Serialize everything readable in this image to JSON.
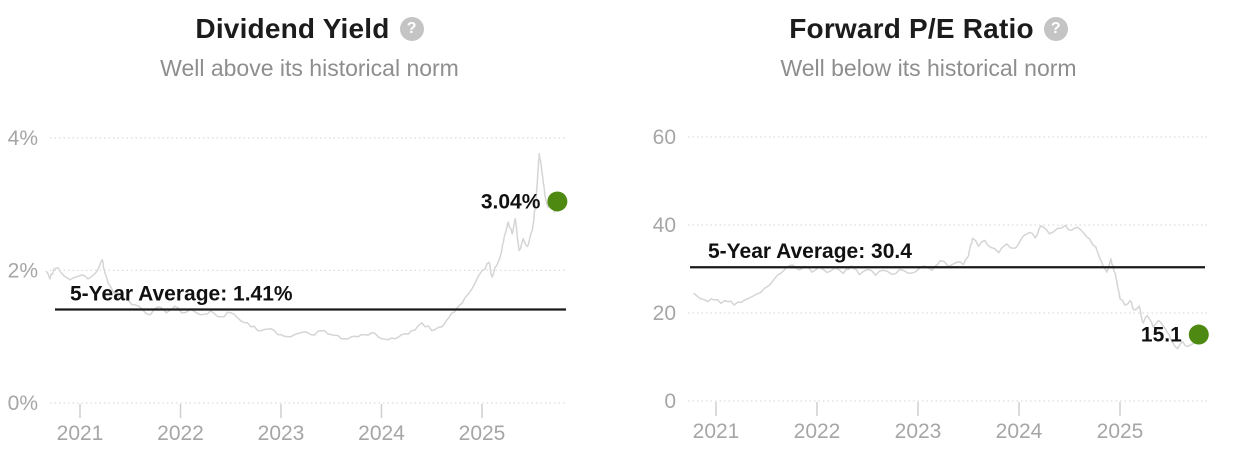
{
  "charts": [
    {
      "title": "Dividend Yield",
      "subtitle": "Well above its historical norm",
      "help_icon": {
        "glyph": "?"
      },
      "chart_data": {
        "type": "line",
        "title": "Dividend Yield",
        "xlabel": "",
        "ylabel": "",
        "xlim": [
          2020.6,
          2025.85
        ],
        "ylim": [
          0,
          4.6
        ],
        "grid": "dotted-horizontal",
        "legend": "none",
        "x_ticks": [
          {
            "value": 2021,
            "label": "2021"
          },
          {
            "value": 2022,
            "label": "2022"
          },
          {
            "value": 2023,
            "label": "2023"
          },
          {
            "value": 2024,
            "label": "2024"
          },
          {
            "value": 2025,
            "label": "2025"
          }
        ],
        "y_ticks": [
          {
            "value": 0,
            "label": "0%"
          },
          {
            "value": 2,
            "label": "2%"
          },
          {
            "value": 4,
            "label": "4%"
          }
        ],
        "average": {
          "value": 1.41,
          "label": "5-Year Average: 1.41%"
        },
        "current": {
          "value": 3.04,
          "label": "3.04%"
        },
        "colors": {
          "line": "#d5d5d5",
          "marker": "#4e8a12",
          "average_line": "#1a1a1a",
          "grid": "#dcdcdc",
          "axis_text": "#a6a6a6"
        },
        "series": [
          {
            "name": "Dividend Yield",
            "points": [
              [
                2020.66,
                1.99
              ],
              [
                2020.7,
                1.87
              ],
              [
                2020.74,
                2.02
              ],
              [
                2020.78,
                2.04
              ],
              [
                2020.84,
                1.92
              ],
              [
                2020.9,
                1.86
              ],
              [
                2020.96,
                1.9
              ],
              [
                2021.02,
                1.93
              ],
              [
                2021.08,
                1.87
              ],
              [
                2021.14,
                1.94
              ],
              [
                2021.19,
                2.05
              ],
              [
                2021.22,
                2.16
              ],
              [
                2021.25,
                1.95
              ],
              [
                2021.28,
                1.81
              ],
              [
                2021.33,
                1.67
              ],
              [
                2021.4,
                1.58
              ],
              [
                2021.48,
                1.55
              ],
              [
                2021.55,
                1.48
              ],
              [
                2021.62,
                1.41
              ],
              [
                2021.7,
                1.33
              ],
              [
                2021.78,
                1.45
              ],
              [
                2021.86,
                1.36
              ],
              [
                2021.94,
                1.46
              ],
              [
                2022.01,
                1.36
              ],
              [
                2022.1,
                1.42
              ],
              [
                2022.2,
                1.33
              ],
              [
                2022.3,
                1.39
              ],
              [
                2022.4,
                1.3
              ],
              [
                2022.5,
                1.36
              ],
              [
                2022.6,
                1.24
              ],
              [
                2022.7,
                1.15
              ],
              [
                2022.8,
                1.09
              ],
              [
                2022.9,
                1.12
              ],
              [
                2023.0,
                1.03
              ],
              [
                2023.1,
                1.0
              ],
              [
                2023.2,
                1.06
              ],
              [
                2023.3,
                1.03
              ],
              [
                2023.4,
                1.09
              ],
              [
                2023.5,
                1.03
              ],
              [
                2023.6,
                0.97
              ],
              [
                2023.7,
                1.0
              ],
              [
                2023.8,
                1.03
              ],
              [
                2023.9,
                1.06
              ],
              [
                2024.0,
                0.97
              ],
              [
                2024.1,
                0.98
              ],
              [
                2024.2,
                1.03
              ],
              [
                2024.3,
                1.09
              ],
              [
                2024.4,
                1.21
              ],
              [
                2024.5,
                1.09
              ],
              [
                2024.6,
                1.15
              ],
              [
                2024.7,
                1.36
              ],
              [
                2024.78,
                1.48
              ],
              [
                2024.85,
                1.62
              ],
              [
                2024.92,
                1.78
              ],
              [
                2024.98,
                1.95
              ],
              [
                2025.03,
                2.02
              ],
              [
                2025.07,
                2.12
              ],
              [
                2025.1,
                1.9
              ],
              [
                2025.14,
                2.06
              ],
              [
                2025.18,
                2.2
              ],
              [
                2025.22,
                2.5
              ],
              [
                2025.26,
                2.73
              ],
              [
                2025.3,
                2.55
              ],
              [
                2025.33,
                2.78
              ],
              [
                2025.37,
                2.3
              ],
              [
                2025.41,
                2.48
              ],
              [
                2025.45,
                2.36
              ],
              [
                2025.5,
                2.6
              ],
              [
                2025.54,
                3.1
              ],
              [
                2025.57,
                3.76
              ],
              [
                2025.6,
                3.45
              ],
              [
                2025.63,
                3.1
              ],
              [
                2025.66,
                2.95
              ],
              [
                2025.69,
                3.12
              ],
              [
                2025.72,
                2.88
              ],
              [
                2025.75,
                3.04
              ]
            ]
          }
        ]
      }
    },
    {
      "title": "Forward P/E Ratio",
      "subtitle": "Well below its historical norm",
      "help_icon": {
        "glyph": "?"
      },
      "chart_data": {
        "type": "line",
        "title": "Forward P/E Ratio",
        "xlabel": "",
        "ylabel": "",
        "xlim": [
          2020.6,
          2025.85
        ],
        "ylim": [
          0,
          62
        ],
        "grid": "dotted-horizontal",
        "legend": "none",
        "x_ticks": [
          {
            "value": 2021,
            "label": "2021"
          },
          {
            "value": 2022,
            "label": "2022"
          },
          {
            "value": 2023,
            "label": "2023"
          },
          {
            "value": 2024,
            "label": "2024"
          },
          {
            "value": 2025,
            "label": "2025"
          }
        ],
        "y_ticks": [
          {
            "value": 0,
            "label": "0"
          },
          {
            "value": 20,
            "label": "20"
          },
          {
            "value": 40,
            "label": "40"
          },
          {
            "value": 60,
            "label": "60"
          }
        ],
        "average": {
          "value": 30.4,
          "label": "5-Year Average: 30.4"
        },
        "current": {
          "value": 15.1,
          "label": "15.1"
        },
        "colors": {
          "line": "#d5d5d5",
          "marker": "#4e8a12",
          "average_line": "#1a1a1a",
          "grid": "#dcdcdc",
          "axis_text": "#a6a6a6"
        },
        "series": [
          {
            "name": "Forward P/E Ratio",
            "points": [
              [
                2020.78,
                24.5
              ],
              [
                2020.85,
                23.2
              ],
              [
                2020.92,
                22.6
              ],
              [
                2020.98,
                23.0
              ],
              [
                2021.05,
                22.2
              ],
              [
                2021.12,
                22.6
              ],
              [
                2021.18,
                21.8
              ],
              [
                2021.25,
                22.4
              ],
              [
                2021.32,
                23.3
              ],
              [
                2021.4,
                24.3
              ],
              [
                2021.48,
                25.6
              ],
              [
                2021.56,
                27.2
              ],
              [
                2021.64,
                29.0
              ],
              [
                2021.7,
                30.4
              ],
              [
                2021.76,
                30.9
              ],
              [
                2021.82,
                29.8
              ],
              [
                2021.88,
                30.6
              ],
              [
                2021.95,
                29.3
              ],
              [
                2022.02,
                30.5
              ],
              [
                2022.1,
                29.2
              ],
              [
                2022.18,
                30.3
              ],
              [
                2022.26,
                29.0
              ],
              [
                2022.34,
                30.7
              ],
              [
                2022.42,
                28.7
              ],
              [
                2022.5,
                29.9
              ],
              [
                2022.58,
                28.6
              ],
              [
                2022.66,
                29.7
              ],
              [
                2022.74,
                28.8
              ],
              [
                2022.82,
                29.9
              ],
              [
                2022.9,
                29.1
              ],
              [
                2022.98,
                29.4
              ],
              [
                2023.06,
                30.7
              ],
              [
                2023.14,
                29.7
              ],
              [
                2023.22,
                31.9
              ],
              [
                2023.3,
                30.6
              ],
              [
                2023.38,
                31.5
              ],
              [
                2023.45,
                31.0
              ],
              [
                2023.5,
                33.0
              ],
              [
                2023.54,
                37.0
              ],
              [
                2023.6,
                35.2
              ],
              [
                2023.66,
                36.5
              ],
              [
                2023.72,
                34.9
              ],
              [
                2023.8,
                33.7
              ],
              [
                2023.88,
                35.7
              ],
              [
                2023.95,
                34.7
              ],
              [
                2024.02,
                36.7
              ],
              [
                2024.1,
                38.3
              ],
              [
                2024.16,
                37.1
              ],
              [
                2024.22,
                39.8
              ],
              [
                2024.3,
                38.0
              ],
              [
                2024.38,
                39.2
              ],
              [
                2024.46,
                39.9
              ],
              [
                2024.52,
                38.8
              ],
              [
                2024.58,
                39.5
              ],
              [
                2024.64,
                38.2
              ],
              [
                2024.7,
                36.8
              ],
              [
                2024.76,
                35.0
              ],
              [
                2024.82,
                31.5
              ],
              [
                2024.87,
                29.3
              ],
              [
                2024.91,
                32.3
              ],
              [
                2024.96,
                28.0
              ],
              [
                2025.0,
                23.2
              ],
              [
                2025.05,
                21.8
              ],
              [
                2025.1,
                22.8
              ],
              [
                2025.14,
                20.7
              ],
              [
                2025.19,
                21.6
              ],
              [
                2025.23,
                17.7
              ],
              [
                2025.27,
                19.4
              ],
              [
                2025.33,
                16.8
              ],
              [
                2025.38,
                18.3
              ],
              [
                2025.43,
                17.0
              ],
              [
                2025.47,
                15.5
              ],
              [
                2025.52,
                13.4
              ],
              [
                2025.57,
                11.9
              ],
              [
                2025.62,
                13.5
              ],
              [
                2025.67,
                12.4
              ],
              [
                2025.72,
                13.0
              ],
              [
                2025.78,
                15.1
              ]
            ]
          }
        ]
      }
    }
  ]
}
